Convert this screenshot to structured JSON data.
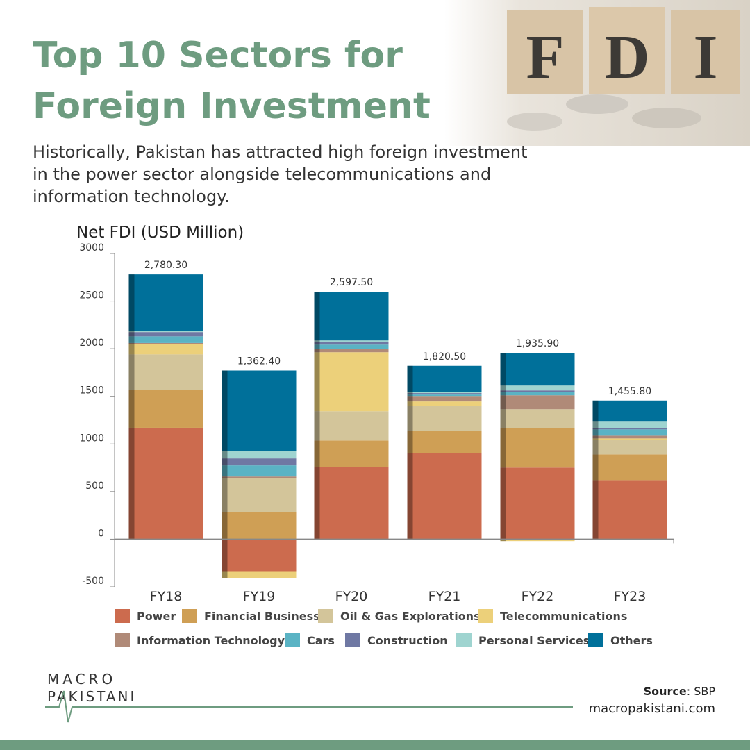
{
  "header": {
    "title_lines": [
      "Top 10 Sectors for",
      "Foreign Investment"
    ],
    "subtitle_lines": [
      "Historically, Pakistan has attracted high foreign investment",
      "in the power sector alongside telecommunications and",
      "information technology."
    ],
    "image_letters": [
      "F",
      "D",
      "I"
    ]
  },
  "chart_data": {
    "type": "stacked-bar",
    "y_label": "Net FDI (USD Million)",
    "categories": [
      "FY18",
      "FY19",
      "FY20",
      "FY21",
      "FY22",
      "FY23"
    ],
    "series": [
      {
        "name": "Power",
        "color": "#cc6b4e",
        "values": [
          1170,
          -336,
          759,
          905,
          752,
          620
        ]
      },
      {
        "name": "Financial Business",
        "color": "#cf9f55",
        "values": [
          400,
          285,
          277,
          234,
          416,
          270
        ]
      },
      {
        "name": "Oil & Gas Explorations",
        "color": "#d3c59a",
        "values": [
          370,
          358,
          307,
          263,
          197,
          153
        ]
      },
      {
        "name": "Telecommunications",
        "color": "#ecd07a",
        "values": [
          105,
          -73,
          620,
          44,
          -20,
          15
        ]
      },
      {
        "name": "Information Technology",
        "color": "#b08a78",
        "values": [
          15,
          15,
          36,
          58,
          146,
          29
        ]
      },
      {
        "name": "Cars",
        "color": "#5ab3c4",
        "values": [
          70,
          117,
          44,
          15,
          36,
          66
        ]
      },
      {
        "name": "Construction",
        "color": "#6f78a3",
        "values": [
          45,
          73,
          29,
          15,
          15,
          15
        ]
      },
      {
        "name": "Personal Services",
        "color": "#9fd4d0",
        "values": [
          15,
          80,
          15,
          10,
          51,
          73
        ]
      },
      {
        "name": "Others",
        "color": "#00709a",
        "values": [
          590.3,
          843.4,
          510.5,
          276.5,
          342.9,
          214.8
        ]
      }
    ],
    "totals": [
      2780.3,
      1362.4,
      2597.5,
      1820.5,
      1935.9,
      1455.8
    ],
    "total_labels": [
      "2,780.30",
      "1,362.40",
      "2,597.50",
      "1,820.50",
      "1,935.90",
      "1,455.80"
    ],
    "ylim": [
      -500,
      3000
    ],
    "yticks": [
      -500,
      0,
      500,
      1000,
      1500,
      2000,
      2500,
      3000
    ]
  },
  "footer": {
    "logo_lines": [
      "MACRO",
      "PAKISTANI"
    ],
    "source_key": "Source",
    "source_value": ": SBP",
    "website": "macropakistani.com"
  }
}
